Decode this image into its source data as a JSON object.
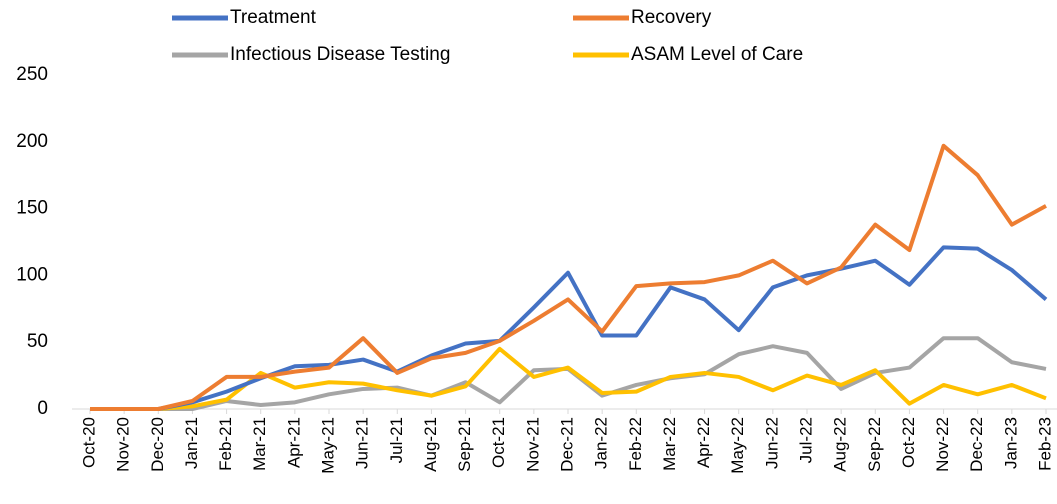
{
  "chart_data": {
    "type": "line",
    "categories": [
      "Oct-20",
      "Nov-20",
      "Dec-20",
      "Jan-21",
      "Feb-21",
      "Mar-21",
      "Apr-21",
      "May-21",
      "Jun-21",
      "Jul-21",
      "Aug-21",
      "Sep-21",
      "Oct-21",
      "Nov-21",
      "Dec-21",
      "Jan-22",
      "Feb-22",
      "Mar-22",
      "Apr-22",
      "May-22",
      "Jun-22",
      "Jul-22",
      "Aug-22",
      "Sep-22",
      "Oct-22",
      "Nov-22",
      "Dec-22",
      "Jan-23",
      "Feb-23"
    ],
    "series": [
      {
        "name": "Treatment",
        "color": "#4472c4",
        "values": [
          0,
          0,
          0,
          5,
          13,
          23,
          32,
          33,
          37,
          28,
          40,
          49,
          51,
          76,
          102,
          55,
          55,
          91,
          82,
          59,
          91,
          100,
          105,
          111,
          93,
          121,
          120,
          104,
          82
        ]
      },
      {
        "name": "Recovery",
        "color": "#ed7d31",
        "values": [
          0,
          0,
          0,
          6,
          24,
          24,
          28,
          31,
          53,
          27,
          38,
          42,
          51,
          66,
          82,
          58,
          92,
          94,
          95,
          100,
          111,
          94,
          106,
          138,
          119,
          197,
          175,
          138,
          152
        ]
      },
      {
        "name": "Infectious Disease Testing",
        "color": "#a5a5a5",
        "values": [
          0,
          0,
          0,
          0,
          6,
          3,
          5,
          11,
          15,
          16,
          10,
          20,
          5,
          29,
          30,
          10,
          18,
          23,
          26,
          41,
          47,
          42,
          15,
          27,
          31,
          53,
          53,
          35,
          30
        ]
      },
      {
        "name": "ASAM Level of Care",
        "color": "#ffc000",
        "values": [
          0,
          0,
          0,
          2,
          7,
          27,
          16,
          20,
          19,
          14,
          10,
          17,
          45,
          24,
          31,
          12,
          13,
          24,
          27,
          24,
          14,
          25,
          18,
          29,
          4,
          18,
          11,
          18,
          8
        ]
      }
    ],
    "ylim": [
      0,
      250
    ],
    "yticks": [
      0,
      50,
      100,
      150,
      200,
      250
    ]
  }
}
